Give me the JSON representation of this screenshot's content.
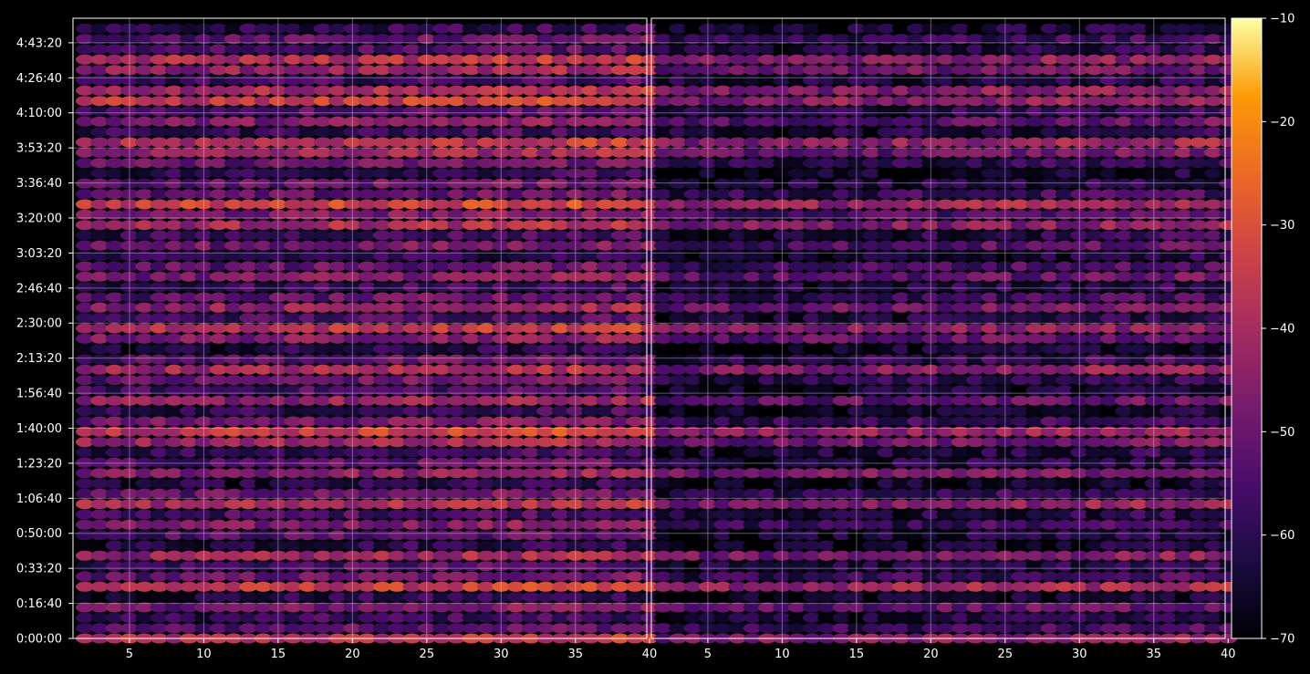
{
  "chart_data": {
    "type": "heatmap",
    "title": "",
    "xlabel": "",
    "ylabel": "",
    "grid": true,
    "panels": [
      {
        "name": "",
        "xlim": [
          1.2,
          39.8
        ],
        "xticks": [
          5,
          10,
          15,
          20,
          25,
          30,
          35
        ],
        "channels": [
          2,
          40
        ]
      },
      {
        "name": "",
        "xlim": [
          1.2,
          39.8
        ],
        "xticks": [
          5,
          10,
          15,
          20,
          25,
          30,
          35,
          40
        ],
        "channels": [
          2,
          40
        ]
      }
    ],
    "ylim_seconds": [
      0,
      17700
    ],
    "ytick_labels": [
      "0:00:00",
      "0:16:40",
      "0:33:20",
      "0:50:00",
      "1:06:40",
      "1:23:20",
      "1:40:00",
      "1:56:40",
      "2:13:20",
      "2:30:00",
      "2:46:40",
      "3:03:20",
      "3:20:00",
      "3:36:40",
      "3:53:20",
      "4:10:00",
      "4:26:40",
      "4:43:20"
    ],
    "ytick_seconds": [
      0,
      1000,
      2000,
      3000,
      4000,
      5000,
      6000,
      7000,
      8000,
      9000,
      10000,
      11000,
      12000,
      13000,
      14000,
      15000,
      16000,
      17000
    ],
    "rows": 60,
    "row_interval_seconds": 295,
    "colorbar": {
      "min": -70,
      "max": -10,
      "ticks": [
        -10,
        -20,
        -30,
        -40,
        -50,
        -60,
        -70
      ],
      "colormap": "inferno"
    },
    "row_levels_panel_1": [
      -38,
      -52,
      -58,
      -48,
      -61,
      -36,
      -50,
      -55,
      -42,
      -60,
      -53,
      -47,
      -55,
      -39,
      -50,
      -62,
      -45,
      -53,
      -57,
      -41,
      -34,
      -48,
      -58,
      -44,
      -55,
      -50,
      -40,
      -52,
      -62,
      -46,
      -37,
      -55,
      -43,
      -52,
      -58,
      -46,
      -51,
      -60,
      -49,
      -57,
      -40,
      -47,
      -33,
      -52,
      -50,
      -59,
      -50,
      -42,
      -37,
      -58,
      -46,
      -53,
      -35,
      -40,
      -57,
      -43,
      -38,
      -55,
      -52,
      -60
    ],
    "row_levels_panel_2": [
      -46,
      -58,
      -64,
      -52,
      -66,
      -42,
      -58,
      -62,
      -47,
      -66,
      -64,
      -58,
      -62,
      -45,
      -60,
      -66,
      -48,
      -62,
      -62,
      -50,
      -44,
      -58,
      -66,
      -52,
      -64,
      -60,
      -46,
      -60,
      -66,
      -52,
      -46,
      -62,
      -50,
      -58,
      -62,
      -52,
      -56,
      -64,
      -54,
      -61,
      -46,
      -54,
      -42,
      -58,
      -62,
      -66,
      -60,
      -50,
      -44,
      -62,
      -52,
      -60,
      -44,
      -46,
      -62,
      -50,
      -46,
      -62,
      -58,
      -64
    ]
  }
}
